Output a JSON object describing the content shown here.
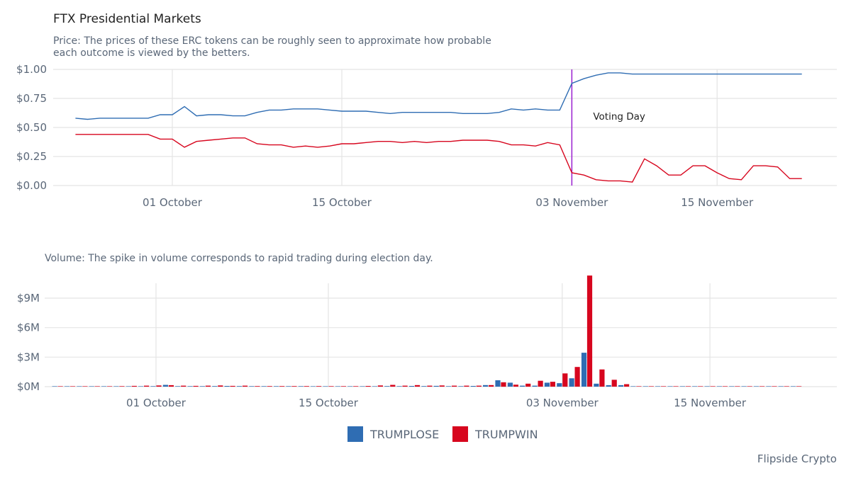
{
  "chart_data": [
    {
      "type": "line",
      "title": "FTX Presidential Markets",
      "subtitle_lines": [
        "Price: The prices of these ERC tokens can be roughly seen to approximate how probable",
        "each outcome is viewed by the betters."
      ],
      "x_tick_labels": [
        "01 October",
        "15 October",
        "03 November",
        "15 November"
      ],
      "x_tick_dates": [
        "2020-10-01",
        "2020-10-15",
        "2020-11-03",
        "2020-11-15"
      ],
      "y_tick_labels": [
        "$0.00",
        "$0.25",
        "$0.50",
        "$0.75",
        "$1.00"
      ],
      "ylim": [
        0,
        1
      ],
      "grid": true,
      "x": [
        "2020-09-23",
        "2020-09-24",
        "2020-09-25",
        "2020-09-26",
        "2020-09-27",
        "2020-09-28",
        "2020-09-29",
        "2020-09-30",
        "2020-10-01",
        "2020-10-02",
        "2020-10-03",
        "2020-10-04",
        "2020-10-05",
        "2020-10-06",
        "2020-10-07",
        "2020-10-08",
        "2020-10-09",
        "2020-10-10",
        "2020-10-11",
        "2020-10-12",
        "2020-10-13",
        "2020-10-14",
        "2020-10-15",
        "2020-10-16",
        "2020-10-17",
        "2020-10-18",
        "2020-10-19",
        "2020-10-20",
        "2020-10-21",
        "2020-10-22",
        "2020-10-23",
        "2020-10-24",
        "2020-10-25",
        "2020-10-26",
        "2020-10-27",
        "2020-10-28",
        "2020-10-29",
        "2020-10-30",
        "2020-10-31",
        "2020-11-01",
        "2020-11-02",
        "2020-11-03",
        "2020-11-04",
        "2020-11-05",
        "2020-11-06",
        "2020-11-07",
        "2020-11-08",
        "2020-11-09",
        "2020-11-10",
        "2020-11-11",
        "2020-11-12",
        "2020-11-13",
        "2020-11-14",
        "2020-11-15",
        "2020-11-16",
        "2020-11-17",
        "2020-11-18",
        "2020-11-19",
        "2020-11-20",
        "2020-11-21",
        "2020-11-22"
      ],
      "series": [
        {
          "name": "TRUMPLOSE",
          "color": "#2f6db3",
          "values": [
            0.58,
            0.57,
            0.58,
            0.58,
            0.58,
            0.58,
            0.58,
            0.61,
            0.61,
            0.68,
            0.6,
            0.61,
            0.61,
            0.6,
            0.6,
            0.63,
            0.65,
            0.65,
            0.66,
            0.66,
            0.66,
            0.65,
            0.64,
            0.64,
            0.64,
            0.63,
            0.62,
            0.63,
            0.63,
            0.63,
            0.63,
            0.63,
            0.62,
            0.62,
            0.62,
            0.63,
            0.66,
            0.65,
            0.66,
            0.65,
            0.65,
            0.88,
            0.92,
            0.95,
            0.97,
            0.97,
            0.96,
            0.96,
            0.96,
            0.96,
            0.96,
            0.96,
            0.96,
            0.96,
            0.96,
            0.96,
            0.96,
            0.96,
            0.96,
            0.96,
            0.96
          ]
        },
        {
          "name": "TRUMPWIN",
          "color": "#d7061e",
          "values": [
            0.44,
            0.44,
            0.44,
            0.44,
            0.44,
            0.44,
            0.44,
            0.4,
            0.4,
            0.33,
            0.38,
            0.39,
            0.4,
            0.41,
            0.41,
            0.36,
            0.35,
            0.35,
            0.33,
            0.34,
            0.33,
            0.34,
            0.36,
            0.36,
            0.37,
            0.38,
            0.38,
            0.37,
            0.38,
            0.37,
            0.38,
            0.38,
            0.39,
            0.39,
            0.39,
            0.38,
            0.35,
            0.35,
            0.34,
            0.37,
            0.35,
            0.11,
            0.09,
            0.05,
            0.04,
            0.04,
            0.03,
            0.23,
            0.17,
            0.09,
            0.09,
            0.17,
            0.17,
            0.11,
            0.06,
            0.05,
            0.17,
            0.17,
            0.16,
            0.06,
            0.06
          ]
        }
      ],
      "annotations": [
        {
          "text": "Voting Day",
          "x": "2020-11-03",
          "color": "#9b1fd1"
        }
      ]
    },
    {
      "type": "bar",
      "subtitle": "Volume: The spike in volume corresponds to rapid trading during election day.",
      "x_tick_labels": [
        "01 October",
        "15 October",
        "03 November",
        "15 November"
      ],
      "x_tick_dates": [
        "2020-10-01",
        "2020-10-15",
        "2020-11-03",
        "2020-11-15"
      ],
      "y_tick_labels": [
        "$0M",
        "$3M",
        "$6M",
        "$9M"
      ],
      "ylim": [
        0,
        11.8
      ],
      "y_unit": "millions USD",
      "grid": true,
      "x": [
        "2020-09-23",
        "2020-09-24",
        "2020-09-25",
        "2020-09-26",
        "2020-09-27",
        "2020-09-28",
        "2020-09-29",
        "2020-09-30",
        "2020-10-01",
        "2020-10-02",
        "2020-10-03",
        "2020-10-04",
        "2020-10-05",
        "2020-10-06",
        "2020-10-07",
        "2020-10-08",
        "2020-10-09",
        "2020-10-10",
        "2020-10-11",
        "2020-10-12",
        "2020-10-13",
        "2020-10-14",
        "2020-10-15",
        "2020-10-16",
        "2020-10-17",
        "2020-10-18",
        "2020-10-19",
        "2020-10-20",
        "2020-10-21",
        "2020-10-22",
        "2020-10-23",
        "2020-10-24",
        "2020-10-25",
        "2020-10-26",
        "2020-10-27",
        "2020-10-28",
        "2020-10-29",
        "2020-10-30",
        "2020-10-31",
        "2020-11-01",
        "2020-11-02",
        "2020-11-03",
        "2020-11-04",
        "2020-11-05",
        "2020-11-06",
        "2020-11-07",
        "2020-11-08",
        "2020-11-09",
        "2020-11-10",
        "2020-11-11",
        "2020-11-12",
        "2020-11-13",
        "2020-11-14",
        "2020-11-15",
        "2020-11-16",
        "2020-11-17",
        "2020-11-18",
        "2020-11-19",
        "2020-11-20",
        "2020-11-21",
        "2020-11-22"
      ],
      "series": [
        {
          "name": "TRUMPLOSE",
          "color": "#2f6db3",
          "values": [
            0.01,
            0.01,
            0.01,
            0.01,
            0.01,
            0.01,
            0.02,
            0.03,
            0.05,
            0.18,
            0.05,
            0.05,
            0.05,
            0.06,
            0.07,
            0.06,
            0.05,
            0.05,
            0.05,
            0.05,
            0.05,
            0.04,
            0.03,
            0.03,
            0.03,
            0.03,
            0.04,
            0.06,
            0.05,
            0.07,
            0.06,
            0.08,
            0.05,
            0.05,
            0.07,
            0.16,
            0.65,
            0.4,
            0.1,
            0.1,
            0.4,
            0.35,
            0.85,
            3.45,
            0.3,
            0.15,
            0.15,
            0.02,
            0.01,
            0.01,
            0.01,
            0.01,
            0.01,
            0.01,
            0.02,
            0.01,
            0.01,
            0.01,
            0.01,
            0.01,
            0.01
          ]
        },
        {
          "name": "TRUMPWIN",
          "color": "#d7061e",
          "values": [
            0.01,
            0.01,
            0.01,
            0.01,
            0.02,
            0.05,
            0.08,
            0.1,
            0.12,
            0.15,
            0.1,
            0.08,
            0.1,
            0.12,
            0.08,
            0.1,
            0.06,
            0.06,
            0.06,
            0.06,
            0.06,
            0.06,
            0.05,
            0.05,
            0.05,
            0.07,
            0.12,
            0.18,
            0.1,
            0.16,
            0.1,
            0.12,
            0.1,
            0.1,
            0.1,
            0.16,
            0.45,
            0.2,
            0.3,
            0.6,
            0.5,
            1.35,
            2.0,
            11.3,
            1.75,
            0.7,
            0.25,
            0.02,
            0.01,
            0.01,
            0.01,
            0.01,
            0.01,
            0.01,
            0.01,
            0.01,
            0.01,
            0.01,
            0.01,
            0.01,
            0.01
          ]
        }
      ]
    }
  ],
  "legend": {
    "items": [
      {
        "label": "TRUMPLOSE",
        "color": "#2f6db3"
      },
      {
        "label": "TRUMPWIN",
        "color": "#d7061e"
      }
    ]
  },
  "source": "Flipside Crypto"
}
